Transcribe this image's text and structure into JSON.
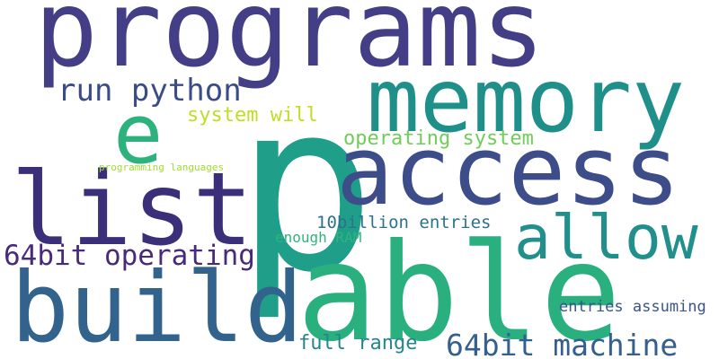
{
  "words": [
    {
      "text": "programs",
      "color": "#433e85"
    },
    {
      "text": "p",
      "color": "#1f9e89"
    },
    {
      "text": "memory",
      "color": "#1f8f8a"
    },
    {
      "text": "access",
      "color": "#3d4d8a"
    },
    {
      "text": "able",
      "color": "#2ab07f"
    },
    {
      "text": "list",
      "color": "#3b2f7a"
    },
    {
      "text": "build",
      "color": "#31638d"
    },
    {
      "text": "e",
      "color": "#2db27d"
    },
    {
      "text": "allow",
      "color": "#21908d"
    },
    {
      "text": "run python",
      "color": "#3a4b88"
    },
    {
      "text": "64bit operating",
      "color": "#472a7a"
    },
    {
      "text": "64bit machine",
      "color": "#355f8d"
    },
    {
      "text": "system will",
      "color": "#bddf26"
    },
    {
      "text": "operating system",
      "color": "#6ece58"
    },
    {
      "text": "10billion entries",
      "color": "#2c718e"
    },
    {
      "text": "enough RAM",
      "color": "#2fb47c"
    },
    {
      "text": "full range",
      "color": "#25858e"
    },
    {
      "text": "entries assuming",
      "color": "#3a548c"
    },
    {
      "text": "programming languages",
      "color": "#a5db36"
    }
  ]
}
